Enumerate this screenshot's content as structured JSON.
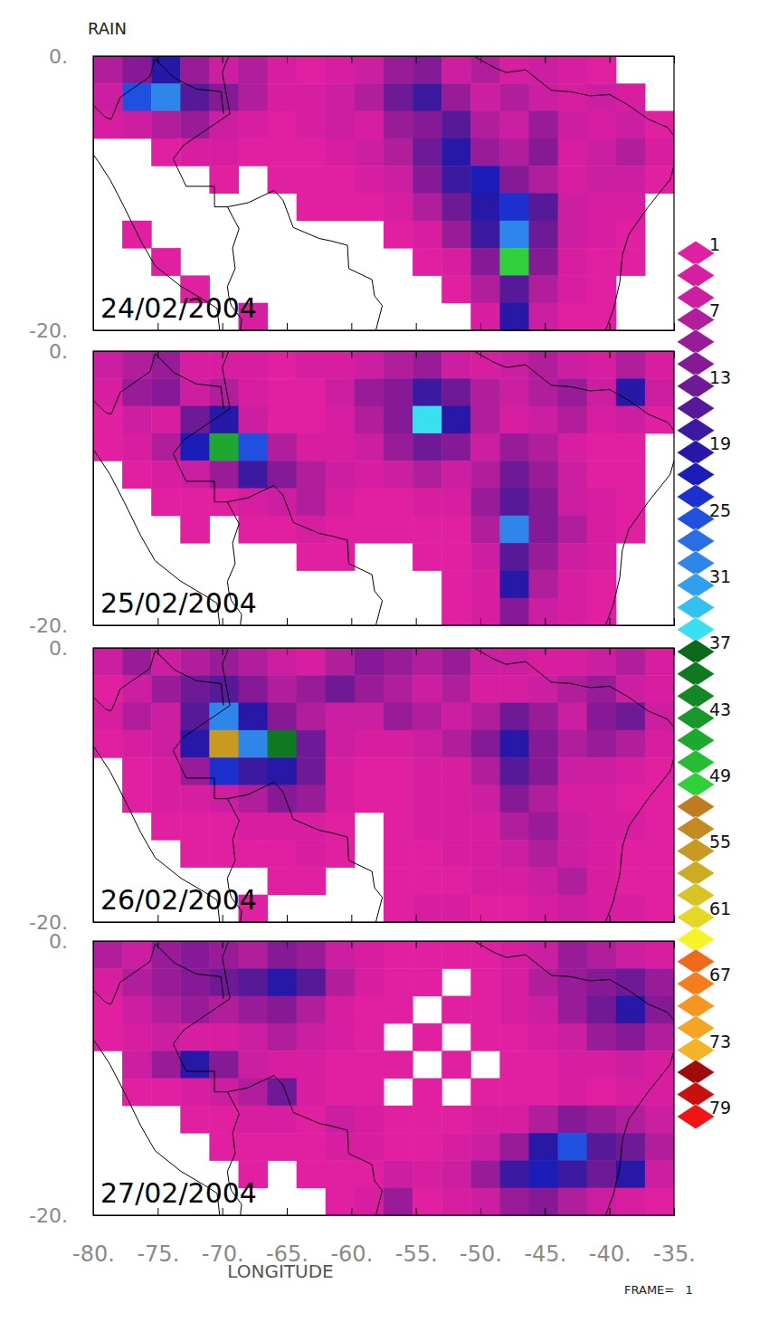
{
  "chart_data": {
    "type": "heatmap",
    "title": "RAIN",
    "x_label": "LONGITUDE",
    "footer": "FRAME=   1",
    "xlim": [
      -80,
      -35
    ],
    "xticks": [
      {
        "value": -80,
        "label": "-80."
      },
      {
        "value": -75,
        "label": "-75."
      },
      {
        "value": -70,
        "label": "-70."
      },
      {
        "value": -65,
        "label": "-65."
      },
      {
        "value": -60,
        "label": "-60."
      },
      {
        "value": -55,
        "label": "-55."
      },
      {
        "value": -50,
        "label": "-50."
      },
      {
        "value": -45,
        "label": "-45."
      },
      {
        "value": -40,
        "label": "-40."
      },
      {
        "value": -35,
        "label": "-35."
      }
    ],
    "ylim": [
      -20,
      0
    ],
    "yticks": [
      {
        "value": -20,
        "label": "-20."
      },
      {
        "value": 0,
        "label": "0."
      }
    ],
    "lon_edges": [
      -80,
      -77.75,
      -75.5,
      -73.25,
      -71,
      -68.75,
      -66.5,
      -64.25,
      -62,
      -59.75,
      -57.5,
      -55.25,
      -53,
      -50.75,
      -48.5,
      -46.25,
      -44,
      -41.75,
      -39.5,
      -37.25,
      -35
    ],
    "lat_edges": [
      0,
      -2,
      -4,
      -6,
      -8,
      -10,
      -12,
      -14,
      -16,
      -18,
      -20
    ],
    "panels": [
      {
        "label": "24/02/2004",
        "cells": [
          [
            8,
            12,
            20,
            10,
            6,
            8,
            3,
            2,
            3,
            6,
            10,
            12,
            6,
            8,
            4,
            6,
            3,
            2,
            0,
            0
          ],
          [
            6,
            25,
            30,
            15,
            12,
            8,
            4,
            3,
            5,
            8,
            14,
            18,
            10,
            6,
            8,
            5,
            4,
            6,
            3,
            0
          ],
          [
            3,
            6,
            8,
            10,
            6,
            4,
            2,
            3,
            6,
            4,
            10,
            12,
            16,
            8,
            6,
            10,
            6,
            4,
            5,
            2
          ],
          [
            0,
            0,
            2,
            3,
            4,
            2,
            1,
            2,
            4,
            6,
            8,
            14,
            20,
            10,
            8,
            12,
            4,
            6,
            8,
            3
          ],
          [
            0,
            0,
            0,
            0,
            1,
            0,
            1,
            2,
            2,
            3,
            6,
            12,
            18,
            22,
            12,
            8,
            4,
            6,
            5,
            2
          ],
          [
            0,
            0,
            0,
            0,
            0,
            0,
            0,
            1,
            1,
            2,
            3,
            8,
            14,
            20,
            24,
            16,
            6,
            4,
            3,
            0
          ],
          [
            0,
            2,
            0,
            0,
            0,
            0,
            0,
            0,
            0,
            0,
            1,
            3,
            10,
            18,
            30,
            14,
            6,
            3,
            1,
            0
          ],
          [
            0,
            0,
            1,
            0,
            0,
            0,
            0,
            0,
            0,
            0,
            0,
            1,
            4,
            12,
            50,
            12,
            4,
            2,
            1,
            0
          ],
          [
            0,
            0,
            0,
            2,
            0,
            0,
            0,
            0,
            0,
            0,
            0,
            0,
            2,
            8,
            16,
            8,
            4,
            2,
            0,
            0
          ],
          [
            0,
            0,
            0,
            0,
            0,
            3,
            0,
            0,
            0,
            0,
            0,
            0,
            0,
            4,
            20,
            6,
            2,
            1,
            0,
            0
          ]
        ]
      },
      {
        "label": "25/02/2004",
        "cells": [
          [
            6,
            8,
            10,
            4,
            4,
            3,
            2,
            3,
            4,
            6,
            8,
            10,
            6,
            4,
            6,
            8,
            6,
            4,
            8,
            4
          ],
          [
            4,
            10,
            12,
            6,
            8,
            3,
            1,
            2,
            6,
            10,
            12,
            18,
            14,
            8,
            6,
            8,
            10,
            6,
            20,
            6
          ],
          [
            2,
            6,
            4,
            14,
            20,
            6,
            2,
            1,
            4,
            8,
            12,
            35,
            20,
            8,
            4,
            6,
            8,
            4,
            6,
            2
          ],
          [
            1,
            3,
            8,
            22,
            45,
            25,
            8,
            3,
            4,
            6,
            10,
            14,
            12,
            6,
            10,
            8,
            4,
            2,
            1,
            0
          ],
          [
            0,
            2,
            3,
            6,
            10,
            18,
            12,
            8,
            6,
            4,
            6,
            8,
            6,
            8,
            14,
            10,
            6,
            2,
            1,
            0
          ],
          [
            0,
            0,
            1,
            2,
            2,
            3,
            6,
            8,
            4,
            2,
            2,
            3,
            4,
            10,
            16,
            12,
            6,
            3,
            2,
            0
          ],
          [
            0,
            0,
            0,
            1,
            0,
            1,
            2,
            3,
            2,
            1,
            1,
            1,
            2,
            8,
            30,
            12,
            8,
            4,
            1,
            0
          ],
          [
            0,
            0,
            0,
            0,
            0,
            0,
            0,
            1,
            1,
            0,
            0,
            1,
            2,
            6,
            16,
            10,
            6,
            3,
            0,
            0
          ],
          [
            0,
            0,
            0,
            0,
            0,
            0,
            0,
            0,
            0,
            0,
            0,
            0,
            2,
            4,
            20,
            8,
            4,
            2,
            0,
            0
          ],
          [
            0,
            0,
            0,
            0,
            0,
            0,
            0,
            0,
            0,
            0,
            0,
            0,
            1,
            3,
            12,
            6,
            3,
            1,
            0,
            0
          ]
        ]
      },
      {
        "label": "26/02/2004",
        "cells": [
          [
            6,
            10,
            6,
            8,
            10,
            8,
            6,
            4,
            8,
            12,
            10,
            8,
            10,
            6,
            6,
            4,
            3,
            6,
            8,
            4
          ],
          [
            2,
            6,
            10,
            14,
            16,
            12,
            8,
            10,
            14,
            10,
            8,
            6,
            8,
            4,
            4,
            6,
            8,
            10,
            6,
            4
          ],
          [
            3,
            8,
            6,
            16,
            30,
            20,
            12,
            8,
            6,
            6,
            10,
            8,
            6,
            8,
            14,
            10,
            6,
            12,
            14,
            6
          ],
          [
            1,
            4,
            6,
            20,
            55,
            30,
            40,
            14,
            6,
            4,
            4,
            6,
            8,
            12,
            20,
            12,
            8,
            10,
            8,
            4
          ],
          [
            0,
            2,
            4,
            10,
            24,
            18,
            20,
            14,
            4,
            2,
            2,
            3,
            4,
            8,
            16,
            12,
            6,
            6,
            4,
            2
          ],
          [
            0,
            1,
            3,
            4,
            6,
            8,
            12,
            10,
            3,
            1,
            2,
            3,
            4,
            6,
            12,
            8,
            4,
            3,
            2,
            1
          ],
          [
            0,
            0,
            1,
            2,
            2,
            3,
            4,
            4,
            2,
            0,
            1,
            3,
            4,
            4,
            8,
            10,
            6,
            4,
            3,
            1
          ],
          [
            0,
            0,
            0,
            1,
            1,
            1,
            2,
            3,
            1,
            0,
            1,
            2,
            3,
            3,
            6,
            8,
            6,
            3,
            2,
            1
          ],
          [
            0,
            0,
            0,
            0,
            0,
            0,
            1,
            1,
            0,
            0,
            2,
            2,
            2,
            4,
            4,
            6,
            8,
            4,
            2,
            1
          ],
          [
            0,
            0,
            0,
            0,
            0,
            1,
            0,
            0,
            0,
            0,
            1,
            3,
            4,
            2,
            2,
            3,
            5,
            4,
            3,
            1
          ]
        ]
      },
      {
        "label": "27/02/2004",
        "cells": [
          [
            8,
            6,
            10,
            12,
            10,
            8,
            12,
            10,
            6,
            4,
            2,
            1,
            1,
            2,
            3,
            6,
            10,
            8,
            6,
            4
          ],
          [
            4,
            8,
            10,
            12,
            14,
            16,
            20,
            16,
            8,
            4,
            1,
            1,
            0,
            1,
            4,
            8,
            10,
            12,
            14,
            10
          ],
          [
            2,
            6,
            8,
            10,
            8,
            10,
            12,
            8,
            4,
            2,
            1,
            0,
            1,
            1,
            3,
            6,
            10,
            14,
            20,
            12
          ],
          [
            1,
            4,
            6,
            4,
            4,
            6,
            8,
            6,
            3,
            1,
            0,
            1,
            0,
            1,
            2,
            4,
            6,
            10,
            12,
            8
          ],
          [
            0,
            6,
            10,
            20,
            12,
            6,
            4,
            3,
            2,
            1,
            1,
            0,
            1,
            0,
            1,
            2,
            3,
            4,
            6,
            4
          ],
          [
            0,
            1,
            2,
            4,
            6,
            8,
            14,
            4,
            2,
            1,
            0,
            1,
            0,
            1,
            1,
            2,
            3,
            2,
            4,
            3
          ],
          [
            0,
            0,
            0,
            1,
            2,
            4,
            3,
            2,
            6,
            3,
            1,
            1,
            2,
            3,
            4,
            8,
            12,
            10,
            8,
            6
          ],
          [
            0,
            0,
            0,
            0,
            1,
            1,
            1,
            2,
            4,
            3,
            2,
            2,
            4,
            6,
            10,
            20,
            25,
            16,
            14,
            8
          ],
          [
            0,
            0,
            0,
            0,
            0,
            1,
            0,
            1,
            1,
            2,
            6,
            4,
            6,
            10,
            18,
            22,
            18,
            14,
            20,
            6
          ],
          [
            0,
            0,
            0,
            0,
            0,
            0,
            0,
            0,
            1,
            4,
            10,
            2,
            4,
            6,
            10,
            12,
            8,
            6,
            4,
            2
          ]
        ]
      }
    ],
    "colorbar": {
      "range": [
        1,
        79
      ],
      "levels": [
        1,
        3,
        5,
        7,
        9,
        11,
        13,
        15,
        17,
        19,
        21,
        23,
        25,
        27,
        29,
        31,
        33,
        35,
        37,
        39,
        41,
        43,
        45,
        47,
        49,
        51,
        53,
        55,
        57,
        59,
        61,
        63,
        65,
        67,
        69,
        71,
        73,
        75,
        77,
        79
      ],
      "colors": [
        "#e020a0",
        "#d81ea0",
        "#cc1ea0",
        "#b01e9c",
        "#981c98",
        "#861a96",
        "#6e1a96",
        "#561a98",
        "#3c1aa0",
        "#2818a8",
        "#1c1cb8",
        "#1c30d0",
        "#2050e0",
        "#2a6ee6",
        "#2e86ea",
        "#30a0ee",
        "#34c0f0",
        "#38e0f0",
        "#0a6a1a",
        "#107820",
        "#148824",
        "#18982a",
        "#1ea830",
        "#26bc34",
        "#30d03a",
        "#c07c20",
        "#c48a22",
        "#c89a20",
        "#ccac22",
        "#d8c424",
        "#e4d824",
        "#f4f428",
        "#f06a1c",
        "#f47e1e",
        "#f49620",
        "#f4a622",
        "#f4b428",
        "#a00c0c",
        "#c81010",
        "#f01414"
      ],
      "ticks": [
        1,
        7,
        13,
        19,
        25,
        31,
        37,
        43,
        49,
        55,
        61,
        67,
        73,
        79
      ]
    },
    "coastlines": [
      {
        "lon": [
          -80.1,
          -80.3,
          -81.2,
          -80.9,
          -79.6,
          -78.7,
          -77.6,
          -76.3,
          -75.2,
          -73.2,
          -71.4,
          -70.4,
          -70.2
        ],
        "lat": [
          0,
          -2.5,
          -4.5,
          -6,
          -7.7,
          -9,
          -11,
          -13.5,
          -15.3,
          -16.8,
          -17.8,
          -18.4,
          -20
        ]
      },
      {
        "lon": [
          -50.5,
          -49,
          -48,
          -46.5,
          -44.5,
          -43,
          -41.5,
          -40,
          -38.5,
          -37,
          -35.5,
          -35
        ],
        "lat": [
          0,
          -0.8,
          -1.2,
          -1,
          -2.5,
          -2.6,
          -2.9,
          -2.8,
          -3.6,
          -4.6,
          -5.2,
          -5.8
        ]
      },
      {
        "lon": [
          -35,
          -35.3,
          -37,
          -38.5,
          -39,
          -39.2,
          -39.7,
          -40.3
        ],
        "lat": [
          -8,
          -9,
          -11,
          -13,
          -14.5,
          -16.5,
          -18.5,
          -20
        ]
      }
    ],
    "borders": [
      {
        "lon": [
          -69.5,
          -70,
          -69.4,
          -73,
          -73.8,
          -72.8,
          -70.6,
          -70.6,
          -69.6,
          -68,
          -66,
          -65.3,
          -64.5,
          -62.5,
          -61.5,
          -60.3,
          -60.2,
          -58.4,
          -58.2,
          -57.6,
          -58.1
        ],
        "lat": [
          0,
          -1.2,
          -4.2,
          -6.5,
          -7.5,
          -9.5,
          -9.5,
          -11,
          -11,
          -10.7,
          -9.8,
          -10.5,
          -12.5,
          -13.3,
          -13.5,
          -13.8,
          -15.5,
          -16.3,
          -17.5,
          -18.2,
          -20
        ]
      },
      {
        "lon": [
          -80.2,
          -79,
          -78.6,
          -77.9,
          -75.6,
          -75.2,
          -73.7,
          -72,
          -70.1,
          -69.9
        ],
        "lat": [
          -3.4,
          -4.5,
          -4.6,
          -3,
          -1.5,
          -0.2,
          -1.6,
          -2.4,
          -2.6,
          -4.2
        ]
      },
      {
        "lon": [
          -69.6,
          -68.7,
          -69.2,
          -69,
          -69.6,
          -69.5
        ],
        "lat": [
          -11,
          -12.6,
          -14,
          -15.5,
          -16.8,
          -17.5
        ]
      },
      {
        "lon": [
          -69.5,
          -69.3,
          -68.5,
          -68.6
        ],
        "lat": [
          -17.5,
          -18.2,
          -19.2,
          -20
        ]
      }
    ]
  }
}
